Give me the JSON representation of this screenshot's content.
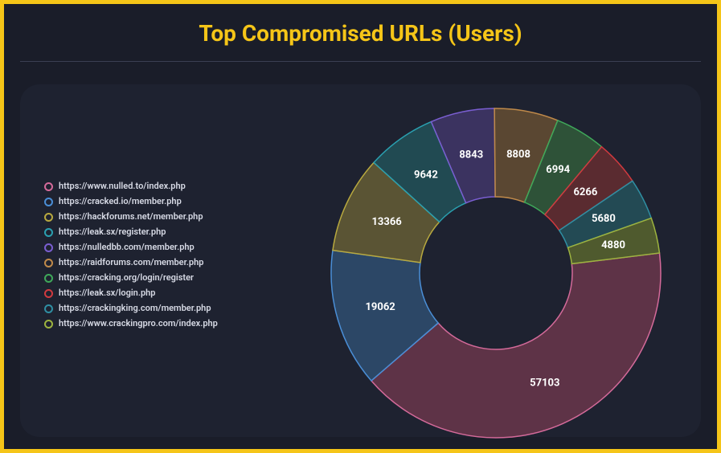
{
  "title": "Top Compromised URLs (Users)",
  "background_color": "#1a1d29",
  "panel_color": "#1e2230",
  "frame_border_color": "#f5c518",
  "title_color": "#f5c518",
  "title_fontsize": 28,
  "legend_fontsize": 11,
  "label_fontsize": 13,
  "label_color": "#ffffff",
  "divider_color": "#3a3f52",
  "chart": {
    "type": "donut",
    "start_angle_deg": 83,
    "direction": "clockwise",
    "outer_radius": 205,
    "inner_radius": 95,
    "label_radius": 150,
    "stroke_width": 1.5,
    "slices": [
      {
        "label": "https://www.nulled.to/index.php",
        "value": 57103,
        "fill": "#5e3347",
        "stroke": "#d46a9a"
      },
      {
        "label": "https://cracked.io/member.php",
        "value": 19062,
        "fill": "#2c4766",
        "stroke": "#4a8ed6"
      },
      {
        "label": "https://hackforums.net/member.php",
        "value": 13366,
        "fill": "#5a5434",
        "stroke": "#b8a93f"
      },
      {
        "label": "https://leak.sx/register.php",
        "value": 9642,
        "fill": "#214a52",
        "stroke": "#2aa0b0"
      },
      {
        "label": "https://nulledbb.com/member.php",
        "value": 8843,
        "fill": "#3b3360",
        "stroke": "#7a5ed1"
      },
      {
        "label": "https://raidforums.com/member.php",
        "value": 8808,
        "fill": "#5a4732",
        "stroke": "#c08a4a"
      },
      {
        "label": "https://cracking.org/login/register",
        "value": 6994,
        "fill": "#2e5238",
        "stroke": "#3fa85a"
      },
      {
        "label": "https://leak.sx/login.php",
        "value": 6266,
        "fill": "#5a2b30",
        "stroke": "#d13a3f"
      },
      {
        "label": "https://crackingking.com/member.php",
        "value": 5680,
        "fill": "#234a54",
        "stroke": "#2f8fa3"
      },
      {
        "label": "https://www.crackingpro.com/index.php",
        "value": 4880,
        "fill": "#4f5a2e",
        "stroke": "#9db33f"
      }
    ]
  }
}
